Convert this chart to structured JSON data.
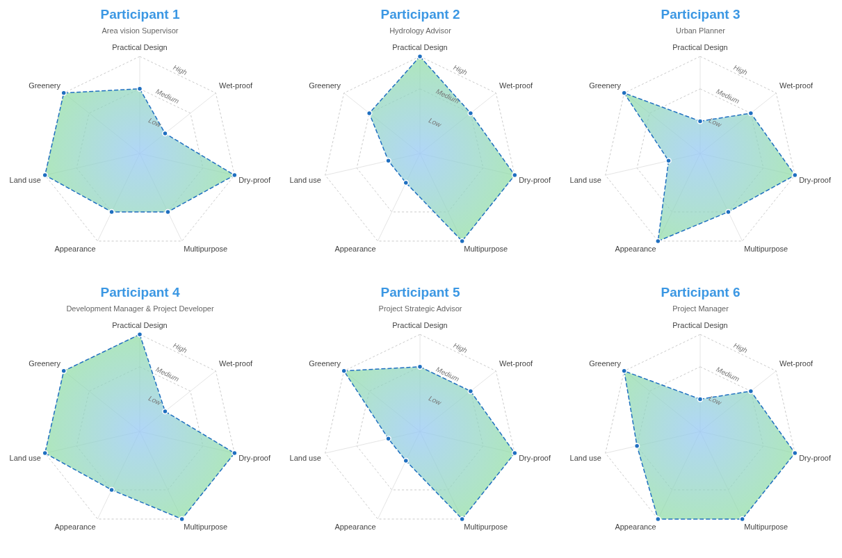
{
  "chart_data": [
    {
      "type": "radar",
      "title": "Participant 1",
      "subtitle": "Area vision Supervisor",
      "categories": [
        "Practical Design",
        "Wet-proof",
        "Dry-proof",
        "Multipurpose",
        "Appearance",
        "Land use",
        "Greenery"
      ],
      "series": [
        {
          "color": "#1f6fc0",
          "values": [
            2,
            1,
            3,
            2,
            2,
            3,
            3
          ]
        }
      ],
      "ylim": [
        0,
        3
      ],
      "yticks": [
        {
          "value": 1,
          "label": "Low"
        },
        {
          "value": 2,
          "label": "Medium"
        },
        {
          "value": 3,
          "label": "High"
        }
      ],
      "grid": true,
      "legend": false,
      "marker": "circle",
      "line_style": "dashed"
    },
    {
      "type": "radar",
      "title": "Participant 2",
      "subtitle": "Hydrology Advisor",
      "categories": [
        "Practical Design",
        "Wet-proof",
        "Dry-proof",
        "Multipurpose",
        "Appearance",
        "Land use",
        "Greenery"
      ],
      "series": [
        {
          "color": "#1f6fc0",
          "values": [
            3,
            2,
            3,
            3,
            1,
            1,
            2
          ]
        }
      ],
      "ylim": [
        0,
        3
      ],
      "yticks": [
        {
          "value": 1,
          "label": "Low"
        },
        {
          "value": 2,
          "label": "Medium"
        },
        {
          "value": 3,
          "label": "High"
        }
      ],
      "grid": true,
      "legend": false,
      "marker": "circle",
      "line_style": "dashed"
    },
    {
      "type": "radar",
      "title": "Participant 3",
      "subtitle": "Urban Planner",
      "categories": [
        "Practical Design",
        "Wet-proof",
        "Dry-proof",
        "Multipurpose",
        "Appearance",
        "Land use",
        "Greenery"
      ],
      "series": [
        {
          "color": "#1f6fc0",
          "values": [
            1,
            2,
            3,
            2,
            3,
            1,
            3
          ]
        }
      ],
      "ylim": [
        0,
        3
      ],
      "yticks": [
        {
          "value": 1,
          "label": "Low"
        },
        {
          "value": 2,
          "label": "Medium"
        },
        {
          "value": 3,
          "label": "High"
        }
      ],
      "grid": true,
      "legend": false,
      "marker": "circle",
      "line_style": "dashed"
    },
    {
      "type": "radar",
      "title": "Participant 4",
      "subtitle": "Development Manager & Project Developer",
      "categories": [
        "Practical Design",
        "Wet-proof",
        "Dry-proof",
        "Multipurpose",
        "Appearance",
        "Land use",
        "Greenery"
      ],
      "series": [
        {
          "color": "#1f6fc0",
          "values": [
            3,
            1,
            3,
            3,
            2,
            3,
            3
          ]
        }
      ],
      "ylim": [
        0,
        3
      ],
      "yticks": [
        {
          "value": 1,
          "label": "Low"
        },
        {
          "value": 2,
          "label": "Medium"
        },
        {
          "value": 3,
          "label": "High"
        }
      ],
      "grid": true,
      "legend": false,
      "marker": "circle",
      "line_style": "dashed"
    },
    {
      "type": "radar",
      "title": "Participant 5",
      "subtitle": "Project Strategic Advisor",
      "categories": [
        "Practical Design",
        "Wet-proof",
        "Dry-proof",
        "Multipurpose",
        "Appearance",
        "Land use",
        "Greenery"
      ],
      "series": [
        {
          "color": "#1f6fc0",
          "values": [
            2,
            2,
            3,
            3,
            1,
            1,
            3
          ]
        }
      ],
      "ylim": [
        0,
        3
      ],
      "yticks": [
        {
          "value": 1,
          "label": "Low"
        },
        {
          "value": 2,
          "label": "Medium"
        },
        {
          "value": 3,
          "label": "High"
        }
      ],
      "grid": true,
      "legend": false,
      "marker": "circle",
      "line_style": "dashed"
    },
    {
      "type": "radar",
      "title": "Participant 6",
      "subtitle": "Project Manager",
      "categories": [
        "Practical Design",
        "Wet-proof",
        "Dry-proof",
        "Multipurpose",
        "Appearance",
        "Land use",
        "Greenery"
      ],
      "series": [
        {
          "color": "#1f6fc0",
          "values": [
            1,
            2,
            3,
            3,
            3,
            2,
            3
          ]
        }
      ],
      "ylim": [
        0,
        3
      ],
      "yticks": [
        {
          "value": 1,
          "label": "Low"
        },
        {
          "value": 2,
          "label": "Medium"
        },
        {
          "value": 3,
          "label": "High"
        }
      ],
      "grid": true,
      "legend": false,
      "marker": "circle",
      "line_style": "dashed"
    }
  ]
}
